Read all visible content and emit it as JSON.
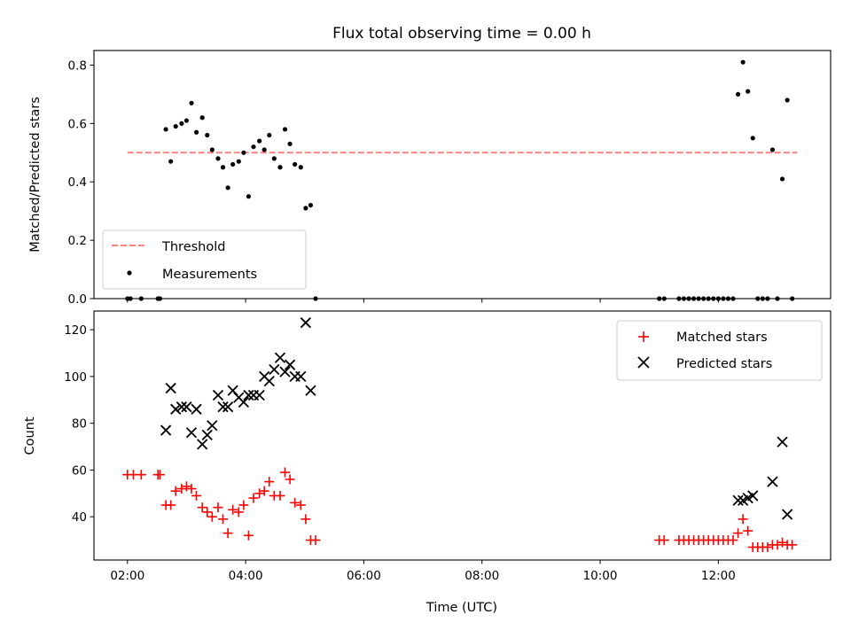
{
  "chart_data": [
    {
      "type": "scatter",
      "title": "Flux total observing time = 0.00 h",
      "xlabel": "",
      "ylabel": "Matched/Predicted stars",
      "xlim": [
        "01:26",
        "13:54"
      ],
      "ylim": [
        0,
        0.85
      ],
      "yticks": [
        0.0,
        0.2,
        0.4,
        0.6,
        0.8
      ],
      "ytick_labels": [
        "0.0",
        "0.2",
        "0.4",
        "0.6",
        "0.8"
      ],
      "legend": {
        "position": "lower-left",
        "entries": [
          "Threshold",
          "Measurements"
        ]
      },
      "threshold": {
        "name": "Threshold",
        "value": 0.5,
        "x_start": "02:00",
        "x_end": "13:20",
        "color": "#ff7f7f",
        "style": "dashed"
      },
      "series": [
        {
          "name": "Measurements",
          "marker": "dot",
          "color": "#000000",
          "points": [
            [
              "02:00",
              0.0
            ],
            [
              "02:03",
              0.0
            ],
            [
              "02:14",
              0.0
            ],
            [
              "02:31",
              0.0
            ],
            [
              "02:33",
              0.0
            ],
            [
              "02:39",
              0.58
            ],
            [
              "02:44",
              0.47
            ],
            [
              "02:49",
              0.59
            ],
            [
              "02:55",
              0.6
            ],
            [
              "03:00",
              0.61
            ],
            [
              "03:05",
              0.67
            ],
            [
              "03:10",
              0.57
            ],
            [
              "03:16",
              0.62
            ],
            [
              "03:21",
              0.56
            ],
            [
              "03:26",
              0.51
            ],
            [
              "03:32",
              0.48
            ],
            [
              "03:37",
              0.45
            ],
            [
              "03:42",
              0.38
            ],
            [
              "03:47",
              0.46
            ],
            [
              "03:53",
              0.47
            ],
            [
              "03:58",
              0.5
            ],
            [
              "04:03",
              0.35
            ],
            [
              "04:08",
              0.52
            ],
            [
              "04:14",
              0.54
            ],
            [
              "04:19",
              0.51
            ],
            [
              "04:24",
              0.56
            ],
            [
              "04:29",
              0.48
            ],
            [
              "04:35",
              0.45
            ],
            [
              "04:40",
              0.58
            ],
            [
              "04:45",
              0.53
            ],
            [
              "04:50",
              0.46
            ],
            [
              "04:56",
              0.45
            ],
            [
              "05:01",
              0.31
            ],
            [
              "05:06",
              0.32
            ],
            [
              "05:11",
              0.0
            ],
            [
              "11:00",
              0.0
            ],
            [
              "11:05",
              0.0
            ],
            [
              "11:20",
              0.0
            ],
            [
              "11:25",
              0.0
            ],
            [
              "11:30",
              0.0
            ],
            [
              "11:35",
              0.0
            ],
            [
              "11:40",
              0.0
            ],
            [
              "11:45",
              0.0
            ],
            [
              "11:50",
              0.0
            ],
            [
              "11:55",
              0.0
            ],
            [
              "12:00",
              0.0
            ],
            [
              "12:05",
              0.0
            ],
            [
              "12:10",
              0.0
            ],
            [
              "12:15",
              0.0
            ],
            [
              "12:20",
              0.7
            ],
            [
              "12:25",
              0.81
            ],
            [
              "12:30",
              0.71
            ],
            [
              "12:35",
              0.55
            ],
            [
              "12:40",
              0.0
            ],
            [
              "12:45",
              0.0
            ],
            [
              "12:50",
              0.0
            ],
            [
              "12:55",
              0.51
            ],
            [
              "13:00",
              0.0
            ],
            [
              "13:05",
              0.41
            ],
            [
              "13:10",
              0.68
            ],
            [
              "13:15",
              0.0
            ]
          ]
        }
      ]
    },
    {
      "type": "scatter",
      "title": "",
      "xlabel": "Time (UTC)",
      "ylabel": "Count",
      "xlim": [
        "01:26",
        "13:54"
      ],
      "ylim": [
        21.5,
        128
      ],
      "xticks": [
        "02:00",
        "04:00",
        "06:00",
        "08:00",
        "10:00",
        "12:00"
      ],
      "yticks": [
        40,
        60,
        80,
        100,
        120
      ],
      "ytick_labels": [
        "40",
        "60",
        "80",
        "100",
        "120"
      ],
      "legend": {
        "position": "top-right",
        "entries": [
          "Matched stars",
          "Predicted stars"
        ]
      },
      "series": [
        {
          "name": "Matched stars",
          "marker": "plus",
          "color": "#ff0000",
          "points": [
            [
              "02:00",
              58
            ],
            [
              "02:06",
              58
            ],
            [
              "02:14",
              58
            ],
            [
              "02:31",
              58
            ],
            [
              "02:33",
              58
            ],
            [
              "02:39",
              45
            ],
            [
              "02:44",
              45
            ],
            [
              "02:49",
              51
            ],
            [
              "02:55",
              52
            ],
            [
              "03:00",
              53
            ],
            [
              "03:05",
              52
            ],
            [
              "03:10",
              49
            ],
            [
              "03:16",
              44
            ],
            [
              "03:21",
              42
            ],
            [
              "03:26",
              40
            ],
            [
              "03:32",
              44
            ],
            [
              "03:37",
              39
            ],
            [
              "03:42",
              33
            ],
            [
              "03:47",
              43
            ],
            [
              "03:53",
              42
            ],
            [
              "03:58",
              45
            ],
            [
              "04:03",
              32
            ],
            [
              "04:08",
              48
            ],
            [
              "04:14",
              50
            ],
            [
              "04:19",
              51
            ],
            [
              "04:24",
              55
            ],
            [
              "04:29",
              49
            ],
            [
              "04:35",
              49
            ],
            [
              "04:40",
              59
            ],
            [
              "04:45",
              56
            ],
            [
              "04:50",
              46
            ],
            [
              "04:56",
              45
            ],
            [
              "05:01",
              39
            ],
            [
              "05:06",
              30
            ],
            [
              "05:11",
              30
            ],
            [
              "11:00",
              30
            ],
            [
              "11:05",
              30
            ],
            [
              "11:20",
              30
            ],
            [
              "11:25",
              30
            ],
            [
              "11:30",
              30
            ],
            [
              "11:35",
              30
            ],
            [
              "11:40",
              30
            ],
            [
              "11:45",
              30
            ],
            [
              "11:50",
              30
            ],
            [
              "11:55",
              30
            ],
            [
              "12:00",
              30
            ],
            [
              "12:05",
              30
            ],
            [
              "12:10",
              30
            ],
            [
              "12:15",
              30
            ],
            [
              "12:20",
              33
            ],
            [
              "12:25",
              39
            ],
            [
              "12:30",
              34
            ],
            [
              "12:35",
              27
            ],
            [
              "12:40",
              27
            ],
            [
              "12:45",
              27
            ],
            [
              "12:50",
              27
            ],
            [
              "12:55",
              28
            ],
            [
              "13:00",
              28
            ],
            [
              "13:05",
              29
            ],
            [
              "13:10",
              28
            ],
            [
              "13:15",
              28
            ]
          ]
        },
        {
          "name": "Predicted stars",
          "marker": "x",
          "color": "#000000",
          "points": [
            [
              "02:39",
              77
            ],
            [
              "02:44",
              95
            ],
            [
              "02:49",
              86
            ],
            [
              "02:55",
              87
            ],
            [
              "03:00",
              87
            ],
            [
              "03:05",
              76
            ],
            [
              "03:10",
              86
            ],
            [
              "03:16",
              71
            ],
            [
              "03:21",
              75
            ],
            [
              "03:26",
              79
            ],
            [
              "03:32",
              92
            ],
            [
              "03:37",
              87
            ],
            [
              "03:42",
              87
            ],
            [
              "03:47",
              94
            ],
            [
              "03:53",
              91
            ],
            [
              "03:58",
              89
            ],
            [
              "04:03",
              92
            ],
            [
              "04:08",
              92
            ],
            [
              "04:14",
              92
            ],
            [
              "04:19",
              100
            ],
            [
              "04:24",
              98
            ],
            [
              "04:29",
              103
            ],
            [
              "04:35",
              108
            ],
            [
              "04:40",
              102
            ],
            [
              "04:45",
              105
            ],
            [
              "04:50",
              100
            ],
            [
              "04:56",
              100
            ],
            [
              "05:01",
              123
            ],
            [
              "05:06",
              94
            ],
            [
              "12:20",
              47
            ],
            [
              "12:25",
              47
            ],
            [
              "12:30",
              48
            ],
            [
              "12:35",
              49
            ],
            [
              "12:55",
              55
            ],
            [
              "13:05",
              72
            ],
            [
              "13:10",
              41
            ]
          ]
        }
      ]
    }
  ]
}
